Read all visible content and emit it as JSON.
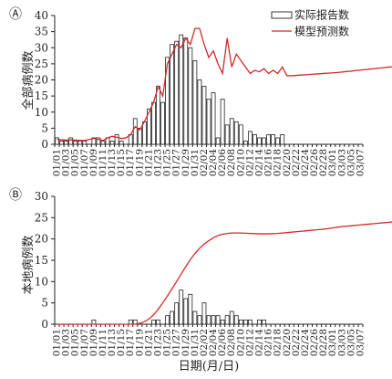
{
  "legend": {
    "reported": "实际报告数",
    "model": "模型预测数",
    "model_color": "#d62728"
  },
  "xlabel": "日期(月/日)",
  "chart_data": [
    {
      "type": "bar",
      "panel_label": "Ⓐ",
      "ylabel": "全部病例数",
      "ylim": [
        0,
        40
      ],
      "yticks": [
        0,
        5,
        10,
        15,
        20,
        25,
        30,
        35,
        40
      ],
      "start_date": "01/01",
      "tick_labels": [
        "01/01",
        "01/03",
        "01/05",
        "01/07",
        "01/09",
        "01/11",
        "01/13",
        "01/15",
        "01/17",
        "01/19",
        "01/21",
        "01/23",
        "01/25",
        "01/27",
        "01/29",
        "01/31",
        "02/02",
        "02/04",
        "02/06",
        "02/08",
        "02/10",
        "02/12",
        "02/14",
        "02/16",
        "02/18",
        "02/20",
        "02/22",
        "02/24",
        "02/26",
        "02/28",
        "03/01",
        "03/03",
        "03/05",
        "03/07"
      ],
      "series": [
        {
          "name": "实际报告数",
          "type": "bar",
          "values": [
            2,
            1,
            1,
            2,
            1,
            1,
            1,
            0,
            2,
            2,
            1,
            2,
            1,
            3,
            1,
            0,
            3,
            8,
            5,
            7,
            11,
            13,
            18,
            13,
            27,
            31,
            32,
            34,
            33,
            30,
            26,
            20,
            18,
            14,
            16,
            2,
            14,
            6,
            8,
            7,
            6,
            1,
            4,
            3,
            2,
            2,
            3,
            3,
            2,
            3
          ]
        },
        {
          "name": "模型预测数",
          "type": "line",
          "values": [
            1.5,
            1.4,
            1.3,
            1.4,
            1.3,
            1.2,
            1.2,
            1.5,
            1.8,
            1.5,
            1.2,
            2.0,
            2.5,
            2.2,
            1.8,
            2.0,
            3.0,
            5.5,
            4.5,
            7.0,
            10.0,
            13.0,
            18.0,
            15.0,
            25.0,
            28.0,
            31.0,
            30.0,
            33.0,
            31.0,
            36.0,
            36.0,
            31.0,
            27.0,
            29.0,
            25.0,
            22.0,
            33.0,
            24.0,
            28.0,
            26.0,
            24.0,
            22.0,
            23.0,
            22.5,
            23.5,
            22.0,
            23.0,
            22.0,
            24.0,
            21.3,
            21.3,
            21.4,
            21.5,
            21.6,
            21.7,
            21.8,
            21.9,
            22.0,
            22.1,
            22.2,
            22.3,
            22.45,
            22.6,
            22.75,
            22.9,
            23.05,
            23.2,
            23.35,
            23.5,
            23.65,
            23.8,
            23.95,
            24.1,
            24.25,
            24.4,
            24.4
          ]
        }
      ]
    },
    {
      "type": "bar",
      "panel_label": "Ⓑ",
      "ylabel": "本地病例数",
      "ylim": [
        0,
        30
      ],
      "yticks": [
        0,
        5,
        10,
        15,
        20,
        25,
        30
      ],
      "start_date": "01/01",
      "tick_labels": [
        "01/01",
        "01/03",
        "01/05",
        "01/07",
        "01/09",
        "01/11",
        "01/13",
        "01/15",
        "01/17",
        "01/19",
        "01/21",
        "01/23",
        "01/25",
        "01/27",
        "01/29",
        "01/31",
        "02/02",
        "02/04",
        "02/06",
        "02/08",
        "02/10",
        "02/12",
        "02/14",
        "02/16",
        "02/18",
        "02/20",
        "02/22",
        "02/24",
        "02/26",
        "02/28",
        "03/01",
        "03/03",
        "03/05",
        "03/07"
      ],
      "series": [
        {
          "name": "实际报告数",
          "type": "bar",
          "values": [
            0,
            0,
            0,
            0,
            0,
            0,
            0,
            0,
            1,
            0,
            0,
            0,
            0,
            0,
            0,
            0,
            1,
            1,
            0,
            0,
            0,
            1,
            1,
            0,
            2,
            3,
            5,
            8,
            6,
            7,
            3,
            2,
            5,
            2,
            2,
            2,
            1,
            2,
            3,
            2,
            1,
            1,
            1,
            0,
            1,
            1,
            0,
            0,
            0,
            0
          ]
        },
        {
          "name": "模型预测数",
          "type": "line",
          "values": [
            0,
            0,
            0,
            0,
            0,
            0,
            0,
            0,
            0,
            0,
            0,
            0,
            0,
            0,
            0,
            0,
            0,
            0,
            0.2,
            0.6,
            1.2,
            2.2,
            3.5,
            5.0,
            6.6,
            8.3,
            10.0,
            11.8,
            13.5,
            15.2,
            16.6,
            17.8,
            18.8,
            19.6,
            20.3,
            20.8,
            21.1,
            21.3,
            21.4,
            21.4,
            21.4,
            21.35,
            21.3,
            21.25,
            21.2,
            21.2,
            21.2,
            21.25,
            21.3,
            21.4,
            21.5,
            21.6,
            21.7,
            21.8,
            21.9,
            22.0,
            22.1,
            22.2,
            22.3,
            22.45,
            22.6,
            22.75,
            22.9,
            23.0,
            23.1,
            23.2,
            23.3,
            23.4,
            23.5,
            23.6,
            23.7,
            23.8,
            23.9,
            24.0,
            24.1,
            24.2,
            24.3
          ]
        }
      ]
    }
  ]
}
